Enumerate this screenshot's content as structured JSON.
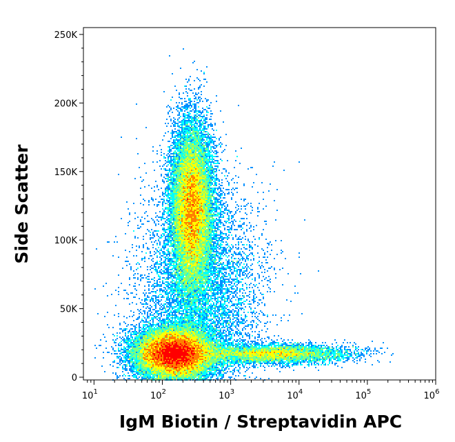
{
  "chart_data": {
    "type": "scatter",
    "subtype": "flow-cytometry-density-dot-plot",
    "xlabel": "IgM Biotin / Streptavidin APC",
    "ylabel": "Side Scatter",
    "x_scale": "log",
    "xlim": [
      7,
      1000000
    ],
    "ylim": [
      -2000,
      255000
    ],
    "x_ticks": [
      {
        "value": 10,
        "base": "10",
        "exp": "1"
      },
      {
        "value": 100,
        "base": "10",
        "exp": "2"
      },
      {
        "value": 1000,
        "base": "10",
        "exp": "3"
      },
      {
        "value": 10000,
        "base": "10",
        "exp": "4"
      },
      {
        "value": 100000,
        "base": "10",
        "exp": "5"
      },
      {
        "value": 1000000,
        "base": "10",
        "exp": "6"
      }
    ],
    "y_ticks": [
      {
        "value": 0,
        "label": "0"
      },
      {
        "value": 50000,
        "label": "50K"
      },
      {
        "value": 100000,
        "label": "100K"
      },
      {
        "value": 150000,
        "label": "150K"
      },
      {
        "value": 200000,
        "label": "200K"
      },
      {
        "value": 250000,
        "label": "250K"
      }
    ],
    "density_colors": [
      "#0000ff",
      "#0090ff",
      "#00ffff",
      "#7fff7f",
      "#ffff00",
      "#ff8000",
      "#ff0000"
    ],
    "populations": [
      {
        "x_center": 150,
        "y_center": 17000,
        "x_spread_decades": 0.28,
        "y_spread": 9000,
        "weight": 0.42
      },
      {
        "x_center": 270,
        "y_center": 122000,
        "x_spread_decades": 0.15,
        "y_spread": 30000,
        "weight": 0.36
      },
      {
        "x_center": 4000,
        "y_center": 17000,
        "x_spread_decades": 0.55,
        "y_spread": 3500,
        "weight": 0.1
      },
      {
        "x_center": 350,
        "y_center": 60000,
        "x_spread_decades": 0.45,
        "y_spread": 40000,
        "weight": 0.12
      }
    ]
  }
}
